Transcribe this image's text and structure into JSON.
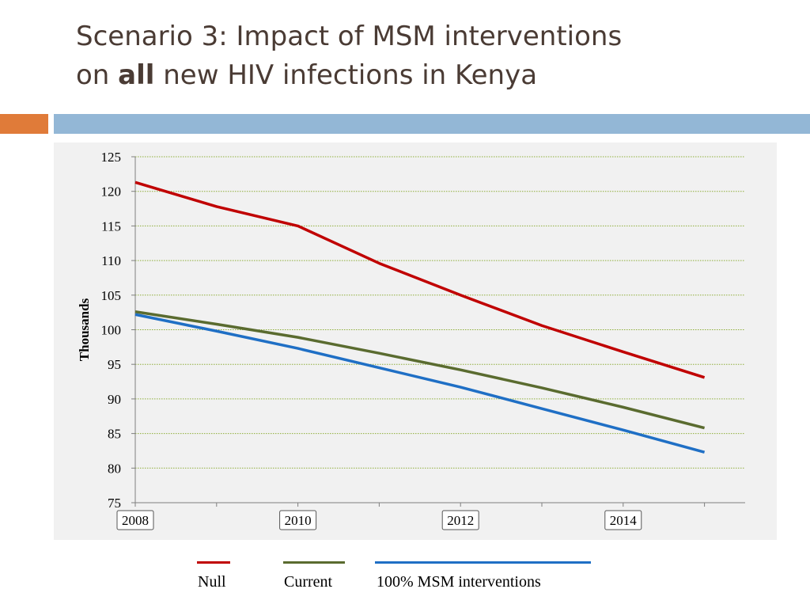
{
  "slide": {
    "title_line1": "Scenario 3: Impact of MSM interventions",
    "title_line2_pre": "on ",
    "title_line2_bold": "all",
    "title_line2_post": " new HIV infections in Kenya"
  },
  "colors": {
    "title_text": "#4a3b34",
    "accent_orange": "#e07b39",
    "accent_blue": "#93b7d6",
    "chart_background": "#f1f1f1",
    "gridline": "#8fae3a",
    "axis": "#7f7f7f"
  },
  "chart_data": {
    "type": "line",
    "title": "",
    "xlabel": "",
    "ylabel": "Thousands",
    "ylim": [
      75,
      125
    ],
    "yticks": [
      75,
      80,
      85,
      90,
      95,
      100,
      105,
      110,
      115,
      120,
      125
    ],
    "xlim": [
      2008,
      2015.5
    ],
    "xtick_labels": [
      "2008",
      "2010",
      "2012",
      "2014"
    ],
    "grid": true,
    "legend_position": "bottom",
    "x": [
      2008,
      2009,
      2010,
      2011,
      2012,
      2013,
      2014,
      2015
    ],
    "series": [
      {
        "name": "Null",
        "color": "#c00000",
        "values": [
          121.3,
          117.8,
          115.0,
          109.6,
          105.0,
          100.6,
          96.8,
          93.1
        ]
      },
      {
        "name": "Current",
        "color": "#5a6b2f",
        "values": [
          102.6,
          100.8,
          98.9,
          96.6,
          94.2,
          91.6,
          88.8,
          85.8
        ]
      },
      {
        "name": "100% MSM interventions",
        "color": "#1f6fc5",
        "values": [
          102.2,
          99.8,
          97.3,
          94.5,
          91.7,
          88.6,
          85.5,
          82.3
        ]
      }
    ]
  }
}
